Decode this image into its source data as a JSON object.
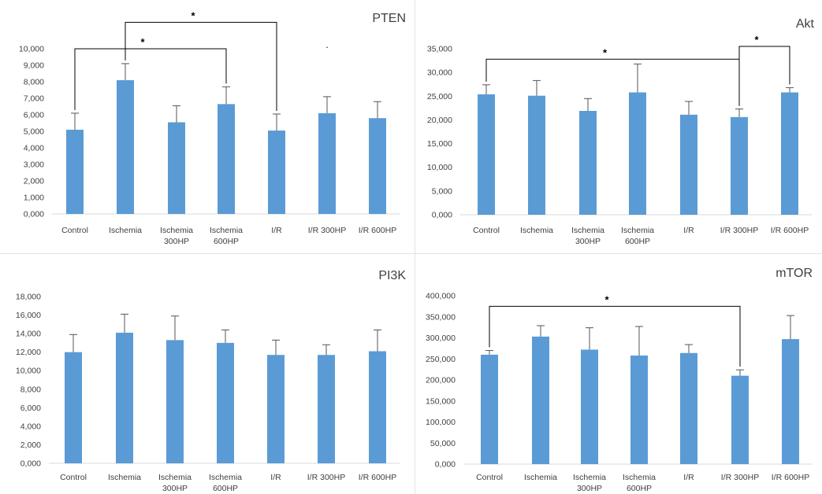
{
  "colors": {
    "bar": "#5b9bd5",
    "error": "#555555",
    "axis": "#d9d9d9",
    "text": "#404040",
    "bracket": "#000000"
  },
  "chart_data": [
    {
      "type": "bar",
      "title": "PTEN",
      "categories": [
        [
          "Control"
        ],
        [
          "Ischemia"
        ],
        [
          "Ischemia",
          "300HP"
        ],
        [
          "Ischemia",
          "600HP"
        ],
        [
          "I/R"
        ],
        [
          "I/R 300HP"
        ],
        [
          "I/R 600HP"
        ]
      ],
      "values": [
        5.1,
        8.1,
        5.55,
        6.65,
        5.05,
        6.1,
        5.8
      ],
      "errors": [
        1.0,
        1.0,
        1.0,
        1.05,
        1.0,
        1.0,
        1.0
      ],
      "ylim": [
        0,
        10
      ],
      "yticks": [
        "0,000",
        "1,000",
        "2,000",
        "3,000",
        "4,000",
        "5,000",
        "6,000",
        "7,000",
        "8,000",
        "9,000",
        "10,000"
      ],
      "significance": [
        {
          "from": 0,
          "to": 3,
          "level": 10.0,
          "label": "*"
        },
        {
          "from": 1,
          "to": 4,
          "level": 11.6,
          "label": "*"
        }
      ],
      "annotations": [
        {
          "x": 5,
          "value": 10.05,
          "text": "."
        }
      ],
      "grid": false,
      "legend": "none"
    },
    {
      "type": "bar",
      "title": "Akt",
      "categories": [
        [
          "Control"
        ],
        [
          "Ischemia"
        ],
        [
          "Ischemia",
          "300HP"
        ],
        [
          "Ischemia",
          "600HP"
        ],
        [
          "I/R"
        ],
        [
          "I/R 300HP"
        ],
        [
          "I/R 600HP"
        ]
      ],
      "values": [
        25400,
        25100,
        21900,
        25800,
        21100,
        20600,
        25800
      ],
      "errors": [
        2000,
        3200,
        2600,
        6000,
        2800,
        1700,
        1000
      ],
      "ylim": [
        0,
        35000
      ],
      "yticks": [
        "0,000",
        "5,000",
        "10,000",
        "15,000",
        "20,000",
        "25,000",
        "30,000",
        "35,000"
      ],
      "significance": [
        {
          "from": 0,
          "to": 5,
          "level": 32800,
          "label": "*"
        },
        {
          "from": 5,
          "to": 6,
          "level": 35500,
          "label": "*"
        }
      ],
      "grid": false,
      "legend": "none"
    },
    {
      "type": "bar",
      "title": "PI3K",
      "categories": [
        [
          "Control"
        ],
        [
          "Ischemia"
        ],
        [
          "Ischemia",
          "300HP"
        ],
        [
          "Ischemia",
          "600HP"
        ],
        [
          "I/R"
        ],
        [
          "I/R 300HP"
        ],
        [
          "I/R 600HP"
        ]
      ],
      "values": [
        12000,
        14100,
        13300,
        13000,
        11700,
        11700,
        12100
      ],
      "errors": [
        1900,
        2000,
        2600,
        1400,
        1600,
        1100,
        2300
      ],
      "ylim": [
        0,
        18000
      ],
      "yticks": [
        "0,000",
        "2,000",
        "4,000",
        "6,000",
        "8,000",
        "10,000",
        "12,000",
        "14,000",
        "16,000",
        "18,000"
      ],
      "significance": [],
      "grid": false,
      "legend": "none"
    },
    {
      "type": "bar",
      "title": "mTOR",
      "categories": [
        [
          "Control"
        ],
        [
          "Ischemia"
        ],
        [
          "Ischemia",
          "300HP"
        ],
        [
          "Ischemia",
          "600HP"
        ],
        [
          "I/R"
        ],
        [
          "I/R 300HP"
        ],
        [
          "I/R 600HP"
        ]
      ],
      "values": [
        260000,
        303000,
        272000,
        258000,
        264000,
        210000,
        297000
      ],
      "errors": [
        10000,
        26000,
        52000,
        69000,
        20000,
        14000,
        56000
      ],
      "ylim": [
        0,
        400000
      ],
      "yticks": [
        "0,000",
        "50,000",
        "100,000",
        "150,000",
        "200,000",
        "250,000",
        "300,000",
        "350,000",
        "400,000"
      ],
      "significance": [
        {
          "from": 0,
          "to": 5,
          "level": 375000,
          "label": "*"
        }
      ],
      "grid": false,
      "legend": "none"
    }
  ]
}
